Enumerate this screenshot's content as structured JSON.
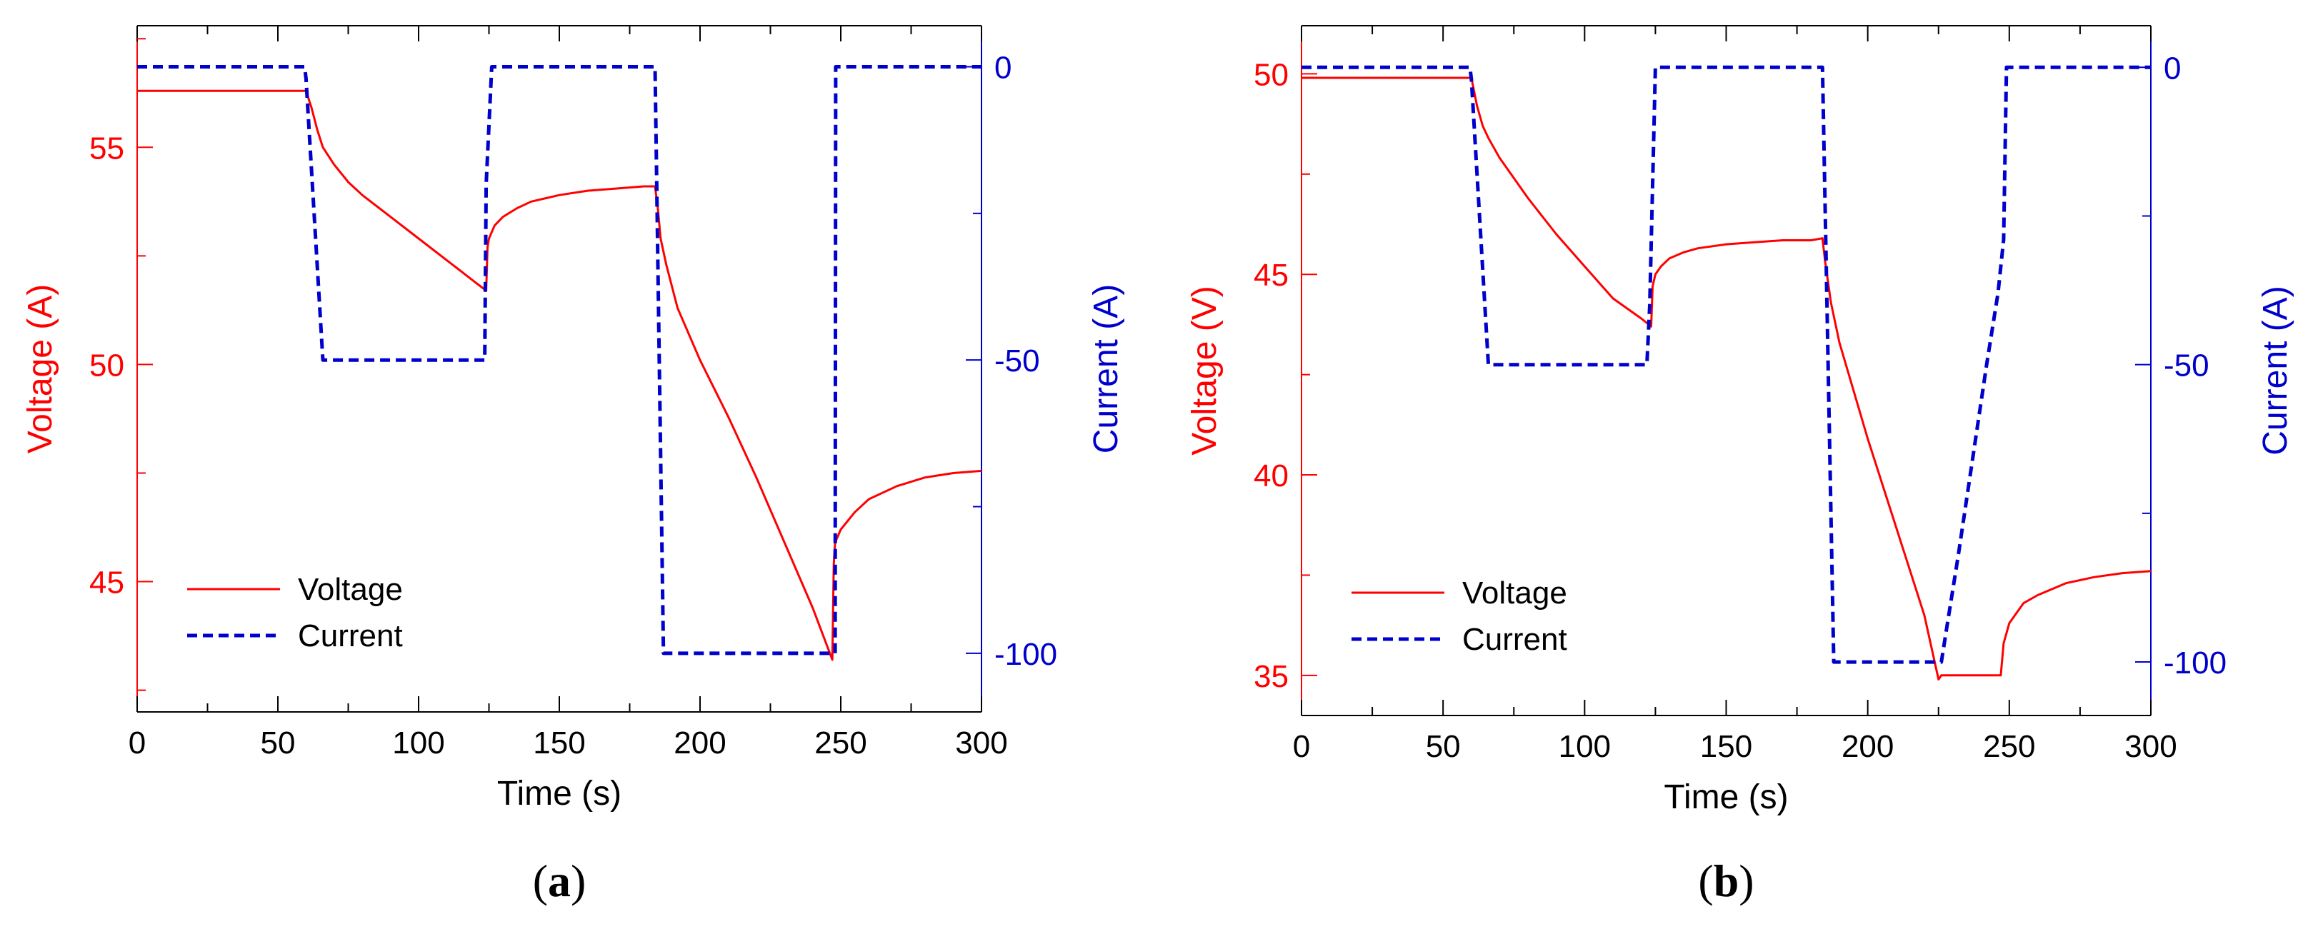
{
  "chart_data": [
    {
      "type": "line",
      "panel_label": "a",
      "xlabel": "Time (s)",
      "ylabel_left": "Voltage (A)",
      "ylabel_right": "Current (A)",
      "xlim": [
        0,
        300
      ],
      "ylim_left": [
        42,
        57.8
      ],
      "ylim_right": [
        -110,
        7
      ],
      "xticks": [
        0,
        50,
        100,
        150,
        200,
        250,
        300
      ],
      "yticks_left": [
        45,
        50,
        55
      ],
      "yticks_right": [
        0,
        -50,
        -100
      ],
      "grid": false,
      "legend_position": "bottom-left",
      "colors": {
        "voltage": "#ff0000",
        "current": "#0000cc"
      },
      "series": [
        {
          "name": "Voltage",
          "axis": "left",
          "style": "solid",
          "x": [
            0,
            60,
            62,
            64,
            66,
            70,
            75,
            80,
            90,
            100,
            110,
            120,
            124,
            124.5,
            125,
            127,
            130,
            135,
            140,
            150,
            160,
            170,
            180,
            184,
            185,
            186,
            188,
            192,
            200,
            210,
            220,
            230,
            240,
            247,
            247.5,
            248,
            250,
            255,
            260,
            270,
            280,
            290,
            300
          ],
          "values": [
            56.3,
            56.3,
            55.9,
            55.4,
            55.0,
            54.6,
            54.2,
            53.9,
            53.4,
            52.9,
            52.4,
            51.9,
            51.7,
            52.7,
            52.9,
            53.2,
            53.4,
            53.6,
            53.75,
            53.9,
            54.0,
            54.05,
            54.1,
            54.1,
            53.6,
            52.9,
            52.3,
            51.3,
            50.1,
            48.8,
            47.4,
            45.9,
            44.4,
            43.2,
            45.4,
            45.9,
            46.2,
            46.6,
            46.9,
            47.2,
            47.4,
            47.5,
            47.55
          ]
        },
        {
          "name": "Current",
          "axis": "right",
          "style": "dashed",
          "x": [
            0,
            59.5,
            60,
            66,
            123.5,
            124,
            126,
            184,
            187,
            248,
            248.2,
            300
          ],
          "values": [
            0,
            0,
            -2,
            -50,
            -50,
            -20,
            0,
            0,
            -100,
            -100,
            0,
            0
          ]
        }
      ]
    },
    {
      "type": "line",
      "panel_label": "b",
      "xlabel": "Time (s)",
      "ylabel_left": "Voltage (V)",
      "ylabel_right": "Current (A)",
      "xlim": [
        0,
        300
      ],
      "ylim_left": [
        34,
        51.2
      ],
      "ylim_right": [
        -109,
        7
      ],
      "xticks": [
        0,
        50,
        100,
        150,
        200,
        250,
        300
      ],
      "yticks_left": [
        35,
        40,
        45,
        50
      ],
      "yticks_right": [
        0,
        -50,
        -100
      ],
      "grid": false,
      "legend_position": "bottom-left",
      "colors": {
        "voltage": "#ff0000",
        "current": "#0000cc"
      },
      "series": [
        {
          "name": "Voltage",
          "axis": "left",
          "style": "solid",
          "x": [
            0,
            60,
            62,
            64,
            66,
            70,
            80,
            90,
            100,
            110,
            120,
            123.5,
            124,
            125,
            127,
            130,
            135,
            140,
            150,
            160,
            170,
            180,
            184,
            185,
            187,
            190,
            200,
            210,
            220,
            225,
            226,
            247,
            248,
            250,
            255,
            260,
            270,
            280,
            290,
            300
          ],
          "values": [
            49.9,
            49.9,
            49.2,
            48.7,
            48.4,
            47.9,
            46.9,
            46.0,
            45.2,
            44.4,
            43.9,
            43.7,
            44.7,
            45.0,
            45.2,
            45.4,
            45.55,
            45.65,
            45.75,
            45.8,
            45.85,
            45.85,
            45.9,
            45.3,
            44.3,
            43.3,
            40.9,
            38.7,
            36.5,
            34.9,
            35.0,
            35.0,
            35.8,
            36.3,
            36.8,
            37.0,
            37.3,
            37.45,
            37.55,
            37.6
          ]
        },
        {
          "name": "Current",
          "axis": "right",
          "style": "dashed",
          "x": [
            0,
            59.5,
            60,
            66,
            122,
            123,
            125,
            184,
            188,
            226,
            228,
            232,
            237,
            242,
            246,
            248,
            249,
            300
          ],
          "values": [
            0,
            0,
            -2,
            -50,
            -50,
            -40,
            0,
            0,
            -100,
            -100,
            -94,
            -82,
            -66,
            -50,
            -38,
            -29,
            0,
            0
          ]
        }
      ]
    }
  ]
}
